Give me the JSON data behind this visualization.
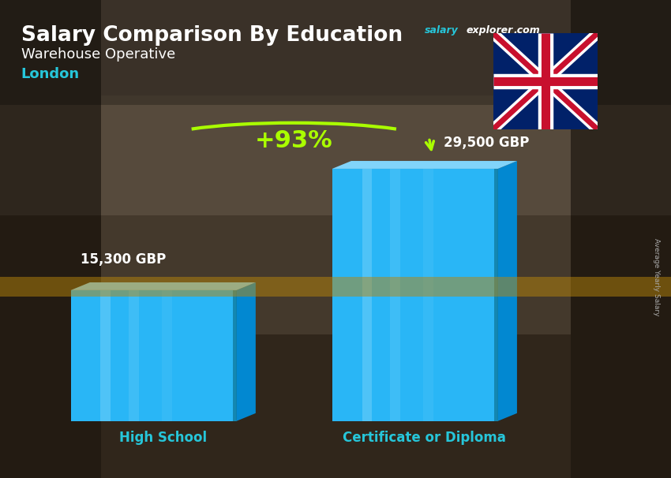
{
  "title_main": "Salary Comparison By Education",
  "subtitle": "Warehouse Operative",
  "location": "London",
  "categories": [
    "High School",
    "Certificate or Diploma"
  ],
  "values": [
    15300,
    29500
  ],
  "value_labels": [
    "15,300 GBP",
    "29,500 GBP"
  ],
  "pct_change": "+93%",
  "bar_face_color": "#29B6F6",
  "bar_side_color": "#0288D1",
  "bar_top_color": "#81D4FA",
  "bar_inner_light": "#4FC3F7",
  "bg_color": "#4a4035",
  "overlay_color": "#2a2318",
  "title_color": "#FFFFFF",
  "subtitle_color": "#FFFFFF",
  "location_color": "#26C6DA",
  "category_color": "#26C6DA",
  "value_color": "#FFFFFF",
  "pct_color": "#AAFF00",
  "salary_text_color": "#26C6DA",
  "explorer_text_color": "#FFFFFF",
  "axis_label": "Average Yearly Salary",
  "ylabel_color": "#AAAAAA",
  "fig_width": 8.5,
  "fig_height": 6.06,
  "dpi": 100
}
